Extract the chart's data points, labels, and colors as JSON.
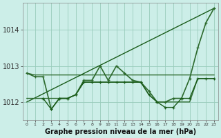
{
  "title": "Graphe pression niveau de la mer (hPa)",
  "bg_color": "#cceee8",
  "grid_color": "#99ccbb",
  "xmin": -0.5,
  "xmax": 23.5,
  "ymin": 1011.5,
  "ymax": 1014.75,
  "yticks": [
    1012,
    1013,
    1014
  ],
  "xticks": [
    0,
    1,
    2,
    3,
    4,
    5,
    6,
    7,
    8,
    9,
    10,
    11,
    12,
    13,
    14,
    15,
    16,
    17,
    18,
    19,
    20,
    21,
    22,
    23
  ],
  "series": [
    {
      "x": [
        0,
        1,
        2,
        3,
        4,
        5,
        6,
        7,
        8,
        9,
        10,
        11,
        12,
        13,
        14,
        15,
        16,
        17,
        18,
        19,
        20,
        21,
        22,
        23
      ],
      "y": [
        1012.8,
        1012.75,
        1012.75,
        1012.75,
        1012.75,
        1012.75,
        1012.75,
        1012.75,
        1012.75,
        1012.75,
        1012.75,
        1012.75,
        1012.75,
        1012.75,
        1012.75,
        1012.75,
        1012.75,
        1012.75,
        1012.75,
        1012.75,
        1012.75,
        1012.75,
        1012.75,
        1012.75
      ],
      "color": "#2d6a2d",
      "lw": 1.0,
      "marker": false
    },
    {
      "x": [
        0,
        23
      ],
      "y": [
        1012.0,
        1014.6
      ],
      "color": "#1a5c1a",
      "lw": 1.0,
      "marker": false
    },
    {
      "x": [
        0,
        1,
        2,
        3,
        4,
        5,
        6,
        7,
        8,
        9,
        10,
        11,
        12,
        13,
        14,
        15,
        16,
        17,
        18,
        19,
        20,
        21,
        22,
        23
      ],
      "y": [
        1012.8,
        1012.7,
        1012.7,
        1011.8,
        1012.1,
        1012.1,
        1012.2,
        1012.6,
        1012.6,
        1013.0,
        1012.6,
        1013.0,
        1012.8,
        1012.6,
        1012.55,
        1012.3,
        1012.0,
        1012.0,
        1012.1,
        1012.1,
        1012.65,
        1013.5,
        1014.2,
        1014.6
      ],
      "color": "#2d6a2d",
      "lw": 1.2,
      "marker": true
    },
    {
      "x": [
        2,
        3,
        4,
        5,
        6,
        7,
        8,
        9,
        10,
        11,
        12,
        13,
        14,
        15,
        16,
        17,
        18,
        19,
        20,
        21,
        22,
        23
      ],
      "y": [
        1012.1,
        1011.8,
        1012.1,
        1012.1,
        1012.2,
        1012.55,
        1012.55,
        1012.55,
        1012.55,
        1012.55,
        1012.55,
        1012.55,
        1012.55,
        1012.2,
        1012.0,
        1011.85,
        1011.85,
        1012.1,
        1012.1,
        1012.65,
        1012.65,
        1012.65
      ],
      "color": "#1a5c1a",
      "lw": 1.0,
      "marker": true
    },
    {
      "x": [
        0,
        1,
        2,
        3,
        4,
        5,
        6,
        7,
        8,
        9,
        10,
        11,
        12,
        13,
        14,
        15,
        16,
        17,
        18,
        19,
        20,
        21,
        22,
        23
      ],
      "y": [
        1012.1,
        1012.1,
        1012.1,
        1012.1,
        1012.1,
        1012.1,
        1012.2,
        1012.55,
        1012.55,
        1012.55,
        1012.55,
        1012.55,
        1012.55,
        1012.55,
        1012.55,
        1012.2,
        1012.0,
        1012.0,
        1012.0,
        1012.0,
        1012.0,
        1012.65,
        1012.65,
        1012.65
      ],
      "color": "#2d6a2d",
      "lw": 1.0,
      "marker": false
    }
  ]
}
